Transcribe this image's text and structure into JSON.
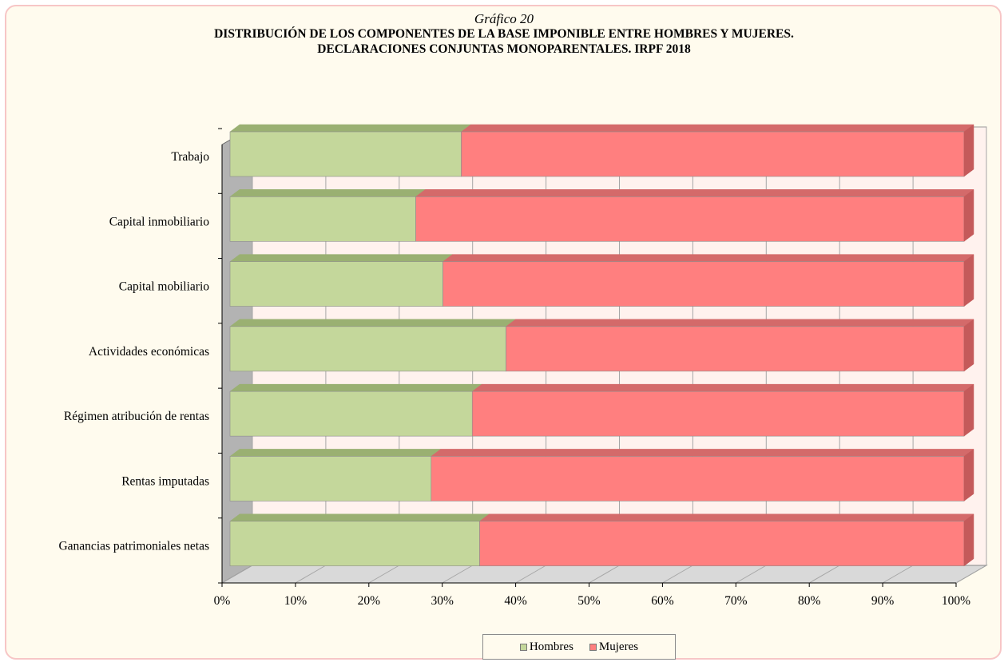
{
  "chart_data": {
    "type": "bar",
    "stacked": "percent",
    "orientation": "horizontal",
    "title_number": "Gráfico 20",
    "title_line1": "DISTRIBUCIÓN DE LOS COMPONENTES DE LA BASE IMPONIBLE ENTRE HOMBRES Y MUJERES.",
    "title_line2": "DECLARACIONES CONJUNTAS MONOPARENTALES.  IRPF 2018",
    "categories": [
      "Trabajo",
      "Capital inmobiliario",
      "Capital mobiliario",
      "Actividades económicas",
      "Régimen atribución de rentas",
      "Rentas imputadas",
      "Ganancias patrimoniales netas"
    ],
    "series": [
      {
        "name": "Hombres",
        "values": [
          31.5,
          25.3,
          29.0,
          37.6,
          33.0,
          27.4,
          34.0
        ],
        "color": "#c4d79b"
      },
      {
        "name": "Mujeres",
        "values": [
          68.5,
          74.7,
          71.0,
          62.4,
          67.0,
          72.6,
          66.0
        ],
        "color": "#ff7f7f"
      }
    ],
    "xlim": [
      0,
      100
    ],
    "x_ticks": [
      "0%",
      "10%",
      "20%",
      "30%",
      "40%",
      "50%",
      "60%",
      "70%",
      "80%",
      "90%",
      "100%"
    ],
    "grid": true,
    "legend_position": "bottom"
  },
  "colors": {
    "background": "#fffbee",
    "plot_wall": "#fff2ee",
    "border": "#f7c6c6"
  }
}
